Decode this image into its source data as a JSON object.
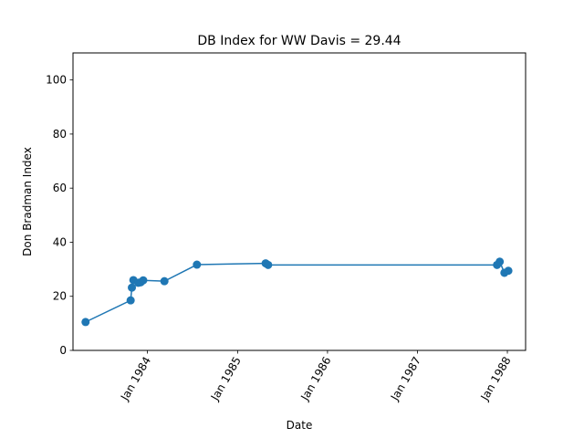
{
  "chart_data": {
    "type": "line",
    "title": "DB Index for WW Davis = 29.44",
    "xlabel": "Date",
    "ylabel": "Don Bradman Index",
    "ylim": [
      0,
      110
    ],
    "yticks": [
      0,
      20,
      40,
      60,
      80,
      100
    ],
    "xlim": [
      "1983-03-05",
      "1988-03-15"
    ],
    "xticks": [
      {
        "date": "1984-01-01",
        "label": "Jan 1984"
      },
      {
        "date": "1985-01-01",
        "label": "Jan 1985"
      },
      {
        "date": "1986-01-01",
        "label": "Jan 1986"
      },
      {
        "date": "1987-01-01",
        "label": "Jan 1987"
      },
      {
        "date": "1988-01-01",
        "label": "Jan 1988"
      }
    ],
    "grid": false,
    "marker": "circle",
    "series": [
      {
        "color": "#1f77b4",
        "points": [
          {
            "x": "1983-04-25",
            "y": 10.5
          },
          {
            "x": "1983-10-25",
            "y": 18.5
          },
          {
            "x": "1983-10-30",
            "y": 23.2
          },
          {
            "x": "1983-11-05",
            "y": 26.0
          },
          {
            "x": "1983-11-25",
            "y": 25.0
          },
          {
            "x": "1983-12-05",
            "y": 25.2
          },
          {
            "x": "1983-12-15",
            "y": 25.9
          },
          {
            "x": "1984-03-10",
            "y": 25.6
          },
          {
            "x": "1984-07-20",
            "y": 31.7
          },
          {
            "x": "1985-04-25",
            "y": 32.2
          },
          {
            "x": "1985-05-05",
            "y": 31.6
          },
          {
            "x": "1987-11-20",
            "y": 31.6
          },
          {
            "x": "1987-12-01",
            "y": 32.8
          },
          {
            "x": "1987-12-20",
            "y": 28.7
          },
          {
            "x": "1988-01-05",
            "y": 29.44
          }
        ]
      }
    ]
  }
}
